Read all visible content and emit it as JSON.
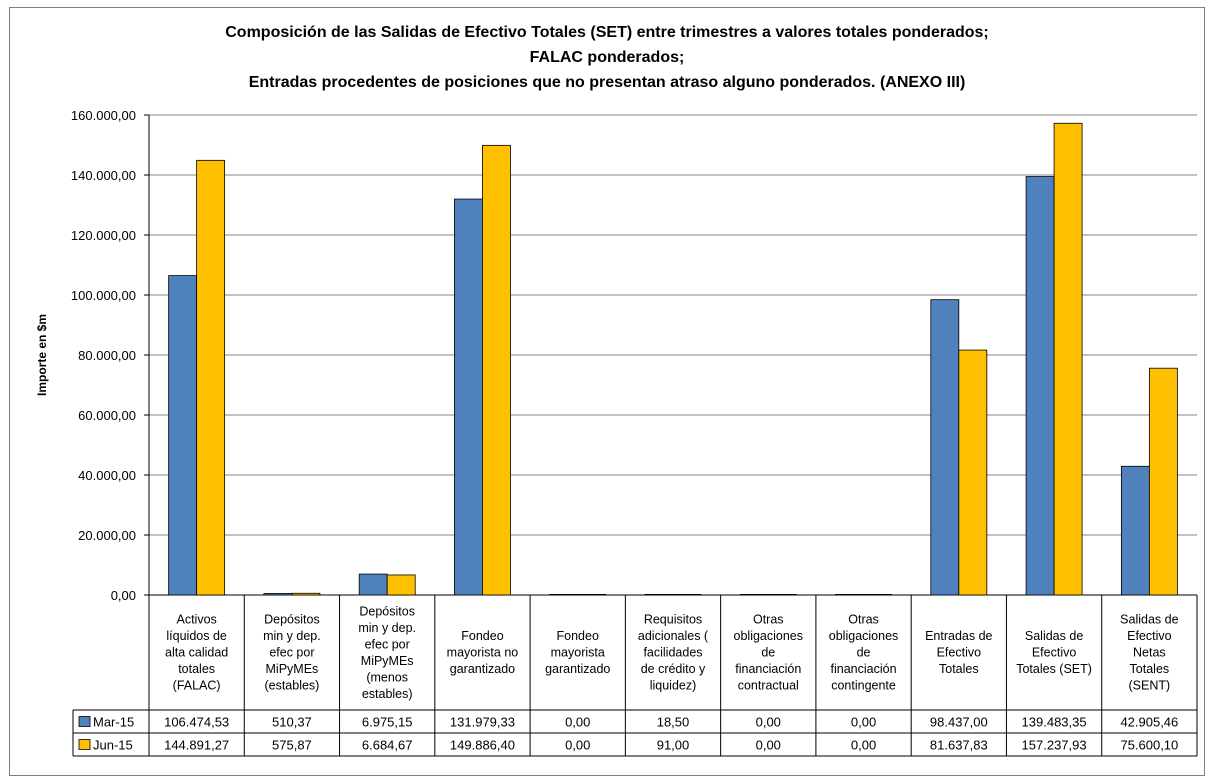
{
  "chart_data": {
    "type": "bar",
    "title_lines": [
      "Composición de las Salidas de Efectivo Totales (SET) entre trimestres a valores totales ponderados;",
      "FALAC ponderados;",
      "Entradas procedentes de posiciones que no presentan atraso alguno ponderados. (ANEXO  III)"
    ],
    "ylabel": "Importe en $m",
    "xlabel": "",
    "ylim": [
      0,
      160000
    ],
    "yticks": [
      0,
      20000,
      40000,
      60000,
      80000,
      100000,
      120000,
      140000,
      160000
    ],
    "ytick_labels": [
      "0,00",
      "20.000,00",
      "40.000,00",
      "60.000,00",
      "80.000,00",
      "100.000,00",
      "120.000,00",
      "140.000,00",
      "160.000,00"
    ],
    "grid": true,
    "legend": "data-table",
    "categories": [
      [
        "Activos",
        "líquidos de",
        "alta calidad",
        "totales",
        "(FALAC)"
      ],
      [
        "Depósitos",
        "min y dep.",
        "efec por",
        "MiPyMEs",
        "(estables)"
      ],
      [
        "Depósitos",
        "min y dep.",
        "efec por",
        "MiPyMEs",
        "(menos",
        "estables)"
      ],
      [
        "Fondeo",
        "mayorista no",
        "garantizado"
      ],
      [
        "Fondeo",
        "mayorista",
        "garantizado"
      ],
      [
        "Requisitos",
        "adicionales (",
        "facilidades",
        "de crédito y",
        "liquidez)"
      ],
      [
        "Otras",
        "obligaciones",
        "de",
        "financiación",
        "contractual"
      ],
      [
        "Otras",
        "obligaciones",
        "de",
        "financiación",
        "contingente"
      ],
      [
        "Entradas de",
        "Efectivo",
        "Totales"
      ],
      [
        "Salidas de",
        "Efectivo",
        "Totales (SET)"
      ],
      [
        "Salidas de",
        "Efectivo",
        "Netas",
        "Totales",
        "(SENT)"
      ]
    ],
    "series": [
      {
        "name": "Mar-15",
        "color": "#4f81bd",
        "values": [
          106474.53,
          510.37,
          6975.15,
          131979.33,
          0,
          18.5,
          0,
          0,
          98437.0,
          139483.35,
          42905.46
        ],
        "labels": [
          "106.474,53",
          "510,37",
          "6.975,15",
          "131.979,33",
          "0,00",
          "18,50",
          "0,00",
          "0,00",
          "98.437,00",
          "139.483,35",
          "42.905,46"
        ]
      },
      {
        "name": "Jun-15",
        "color": "#ffc000",
        "values": [
          144891.27,
          575.87,
          6684.67,
          149886.4,
          0,
          91.0,
          0,
          0,
          81637.83,
          157237.93,
          75600.1
        ],
        "labels": [
          "144.891,27",
          "575,87",
          "6.684,67",
          "149.886,40",
          "0,00",
          "91,00",
          "0,00",
          "0,00",
          "81.637,83",
          "157.237,93",
          "75.600,10"
        ]
      }
    ]
  }
}
